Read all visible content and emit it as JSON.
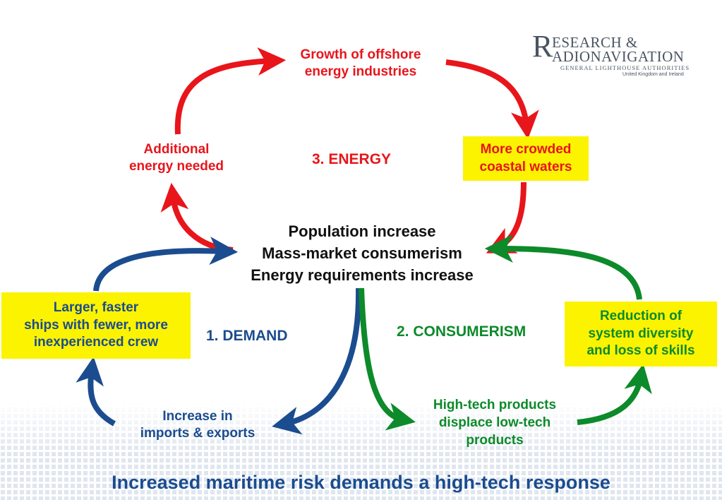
{
  "logo": {
    "initial": "R",
    "line1": "ESEARCH &",
    "line2": "ADIONAVIGATION",
    "line3": "GENERAL LIGHTHOUSE AUTHORITIES",
    "line4": "United Kingdom and Ireland"
  },
  "center": {
    "lines": [
      "Population increase",
      "Mass-market consumerism",
      "Energy requirements increase"
    ]
  },
  "cycles": {
    "energy_label": "3. ENERGY",
    "demand_label": "1. DEMAND",
    "consumerism_label": "2. CONSUMERISM"
  },
  "nodes": {
    "growth_offshore": [
      "Growth of offshore",
      "energy industries"
    ],
    "crowded_waters": [
      "More crowded",
      "coastal waters"
    ],
    "additional_energy": [
      "Additional",
      "energy needed"
    ],
    "larger_ships": [
      "Larger, faster",
      "ships with fewer, more",
      "inexperienced crew"
    ],
    "imports_exports": [
      "Increase in",
      "imports & exports"
    ],
    "hightech_products": [
      "High-tech products",
      "displace low-tech",
      "products"
    ],
    "reduction_diversity": [
      "Reduction of",
      "system diversity",
      "and loss of skills"
    ]
  },
  "headline": "Increased maritime risk demands a high-tech response",
  "colors": {
    "energy": "#e8151b",
    "demand": "#1b4c8f",
    "consumerism": "#0d8a2a",
    "highlight_box": "#fcf300"
  }
}
